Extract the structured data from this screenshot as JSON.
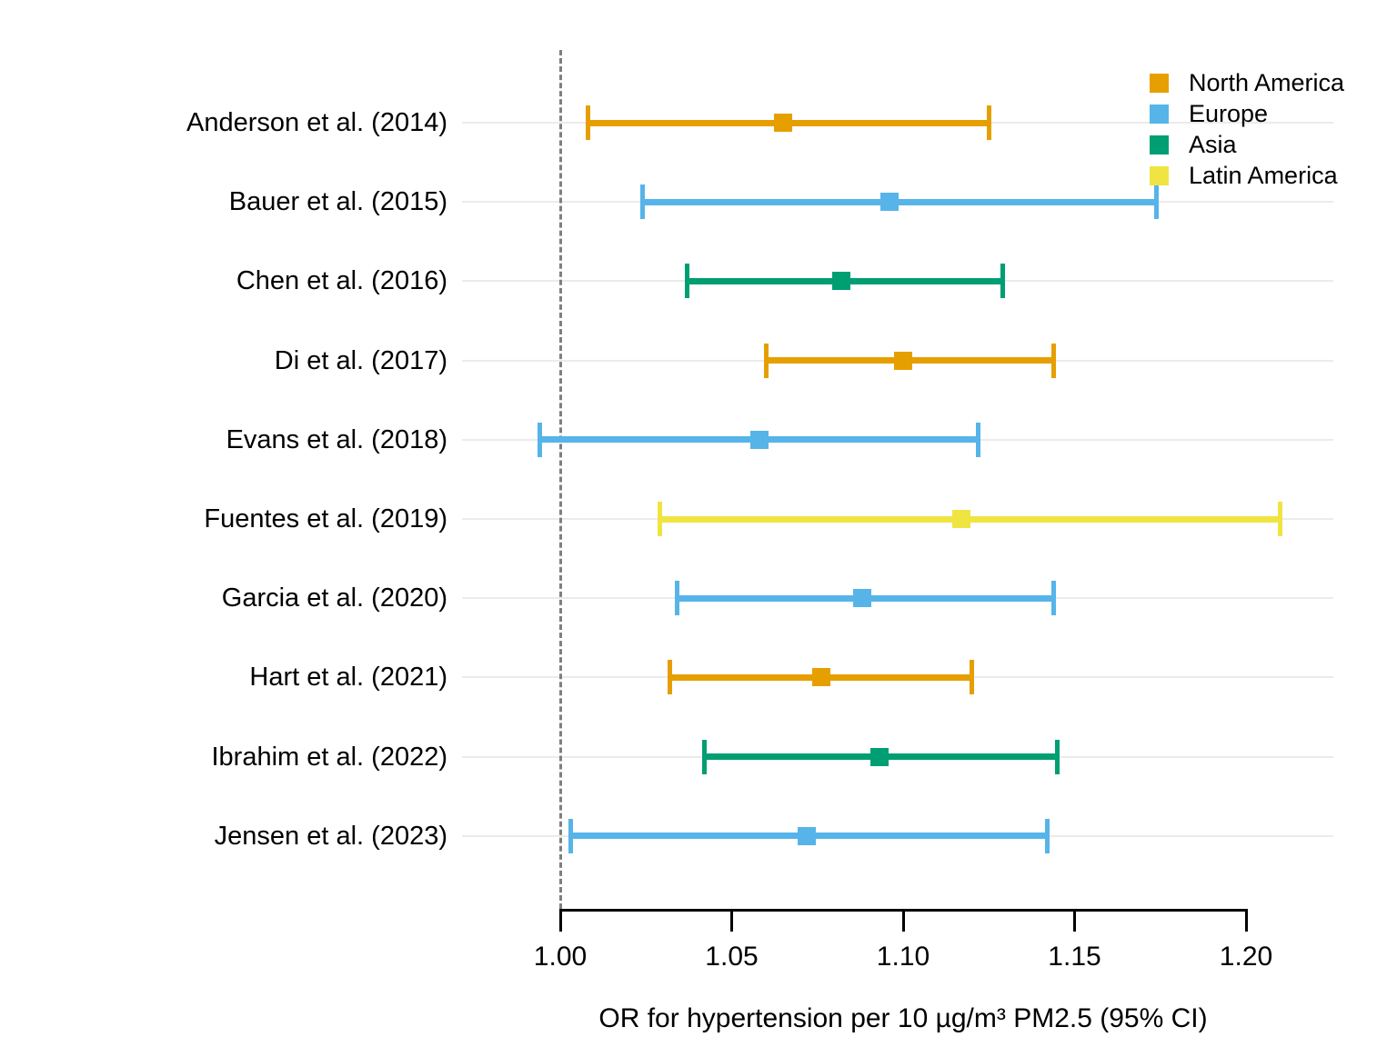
{
  "chart_data": {
    "type": "forest",
    "title": "",
    "xlabel": "OR for hypertension per 10 µg/m³ PM2.5 (95% CI)",
    "x_ticks": [
      1.0,
      1.05,
      1.1,
      1.15,
      1.2
    ],
    "x_tick_labels": [
      "1.00",
      "1.05",
      "1.10",
      "1.15",
      "1.20"
    ],
    "xlim": [
      0.97,
      1.225
    ],
    "reference_line": 1.0,
    "grid": "horizontal-per-row",
    "legend_position": "top-right",
    "legend": [
      {
        "label": "North America",
        "color": "#E69F00"
      },
      {
        "label": "Europe",
        "color": "#56B4E9"
      },
      {
        "label": "Asia",
        "color": "#009E73"
      },
      {
        "label": "Latin America",
        "color": "#F0E442"
      }
    ],
    "studies": [
      {
        "label": "Anderson et al. (2014)",
        "region": "North America",
        "color": "#E69F00",
        "or": 1.065,
        "ci_low": 1.008,
        "ci_high": 1.125
      },
      {
        "label": "Bauer et al. (2015)",
        "region": "Europe",
        "color": "#56B4E9",
        "or": 1.096,
        "ci_low": 1.024,
        "ci_high": 1.174
      },
      {
        "label": "Chen et al. (2016)",
        "region": "Asia",
        "color": "#009E73",
        "or": 1.082,
        "ci_low": 1.037,
        "ci_high": 1.129
      },
      {
        "label": "Di et al. (2017)",
        "region": "North America",
        "color": "#E69F00",
        "or": 1.1,
        "ci_low": 1.06,
        "ci_high": 1.144
      },
      {
        "label": "Evans et al. (2018)",
        "region": "Europe",
        "color": "#56B4E9",
        "or": 1.058,
        "ci_low": 0.994,
        "ci_high": 1.122
      },
      {
        "label": "Fuentes et al. (2019)",
        "region": "Latin America",
        "color": "#F0E442",
        "or": 1.117,
        "ci_low": 1.029,
        "ci_high": 1.21
      },
      {
        "label": "Garcia et al. (2020)",
        "region": "Europe",
        "color": "#56B4E9",
        "or": 1.088,
        "ci_low": 1.034,
        "ci_high": 1.144
      },
      {
        "label": "Hart et al. (2021)",
        "region": "North America",
        "color": "#E69F00",
        "or": 1.076,
        "ci_low": 1.032,
        "ci_high": 1.12
      },
      {
        "label": "Ibrahim et al. (2022)",
        "region": "Asia",
        "color": "#009E73",
        "or": 1.093,
        "ci_low": 1.042,
        "ci_high": 1.145
      },
      {
        "label": "Jensen et al. (2023)",
        "region": "Europe",
        "color": "#56B4E9",
        "or": 1.072,
        "ci_low": 1.003,
        "ci_high": 1.142
      }
    ]
  },
  "colors": {
    "background": "#ffffff",
    "text": "#000000",
    "gridline": "#ebebeb",
    "reference_line": "#7f7f7f",
    "axis": "#000000",
    "north_america": "#E69F00",
    "europe": "#56B4E9",
    "asia": "#009E73",
    "latin_america": "#F0E442"
  }
}
